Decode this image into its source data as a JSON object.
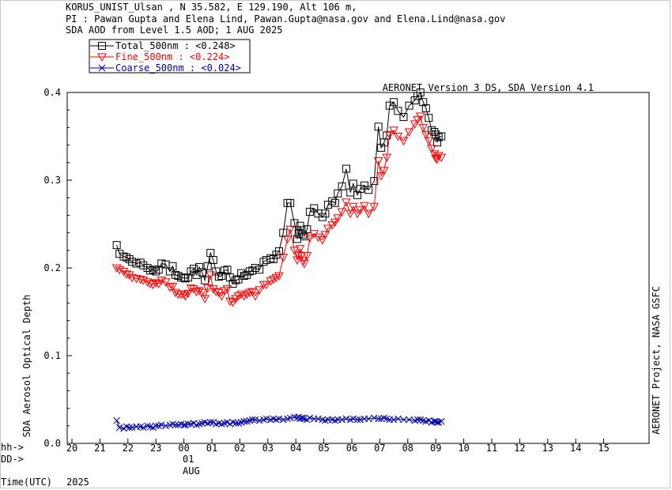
{
  "header": {
    "line1": "KORUS_UNIST_Ulsan , N 35.582, E 129.190, Alt 106 m,",
    "line2": "PI : Pawan Gupta and Elena Lind, Pawan.Gupta@nasa.gov and Elena.Lind@nasa.gov",
    "line3": "SDA AOD from Level 1.5 AOD; 1 AUG 2025"
  },
  "version_label": "AERONET Version 3 DS, SDA Version 4.1",
  "right_credit": "AERONET Project, NASA GSFC",
  "ylabel": "SDA Aerosol Optical Depth",
  "left_labels": {
    "hh": "hh->",
    "dd": "DD->",
    "time": "Time(UTC)",
    "year": "2025"
  },
  "day_label": "01",
  "month_label": "AUG",
  "legend": [
    {
      "name": "Total_500nm",
      "value": "  : <0.248>",
      "color": "#000000",
      "marker": "square"
    },
    {
      "name": "Fine_500nm",
      "value": "  : <0.224>",
      "color": "#ff0000",
      "marker": "triangle"
    },
    {
      "name": "Coarse_500nm",
      "value": "  : <0.024>",
      "color": "#0000aa",
      "marker": "cross"
    }
  ],
  "chart_data": {
    "type": "scatter",
    "title": "SDA AOD from Level 1.5 AOD; 1 AUG 2025",
    "ylabel": "SDA Aerosol Optical Depth",
    "xlabel": "Time(UTC)",
    "x_start_hour": 20,
    "x_end_hour": 15,
    "xlim_hours_since_day_start": [
      -4,
      15.8
    ],
    "x_ticks": [
      "20",
      "21",
      "22",
      "23",
      "00",
      "01",
      "02",
      "03",
      "04",
      "05",
      "06",
      "07",
      "08",
      "09",
      "10",
      "11",
      "12",
      "13",
      "14",
      "15"
    ],
    "ylim": [
      0.0,
      0.4
    ],
    "y_ticks": [
      "0.0",
      "0.1",
      "0.2",
      "0.3",
      "0.4"
    ],
    "grid": false,
    "series": [
      {
        "name": "Total_500nm",
        "color": "#000000",
        "marker": "square",
        "x": [
          21.6,
          21.7,
          21.85,
          21.95,
          22.05,
          22.15,
          22.3,
          22.45,
          22.55,
          22.7,
          22.8,
          22.9,
          23.0,
          23.1,
          23.2,
          23.35,
          23.5,
          23.6,
          23.7,
          23.8,
          23.9,
          24.0,
          24.05,
          24.15,
          24.25,
          24.35,
          24.45,
          24.55,
          24.65,
          24.75,
          24.85,
          24.95,
          25.05,
          25.15,
          25.25,
          25.35,
          25.45,
          25.55,
          25.65,
          25.75,
          25.85,
          25.95,
          26.05,
          26.15,
          26.25,
          26.35,
          26.45,
          26.55,
          26.7,
          26.85,
          26.95,
          27.1,
          27.2,
          27.3,
          27.4,
          27.55,
          27.7,
          27.8,
          27.95,
          28.05,
          28.1,
          28.15,
          28.2,
          28.25,
          28.3,
          28.4,
          28.5,
          28.65,
          28.8,
          28.95,
          29.05,
          29.15,
          29.3,
          29.4,
          29.5,
          29.65,
          29.8,
          29.95,
          30.05,
          30.2,
          30.3,
          30.45,
          30.6,
          30.8,
          30.95,
          31.05,
          31.15,
          31.25,
          31.35,
          31.5,
          31.65,
          31.85,
          32.05,
          32.25,
          32.35,
          32.45,
          32.55,
          32.65,
          32.75,
          32.85,
          32.95,
          33.0,
          33.05,
          33.1,
          33.2
        ],
        "y": [
          0.226,
          0.216,
          0.213,
          0.212,
          0.21,
          0.207,
          0.205,
          0.206,
          0.203,
          0.2,
          0.197,
          0.198,
          0.196,
          0.198,
          0.205,
          0.204,
          0.196,
          0.202,
          0.192,
          0.191,
          0.189,
          0.189,
          0.188,
          0.189,
          0.196,
          0.199,
          0.192,
          0.201,
          0.195,
          0.186,
          0.202,
          0.217,
          0.209,
          0.196,
          0.19,
          0.191,
          0.197,
          0.198,
          0.189,
          0.182,
          0.186,
          0.187,
          0.194,
          0.191,
          0.192,
          0.196,
          0.197,
          0.2,
          0.198,
          0.207,
          0.209,
          0.211,
          0.21,
          0.215,
          0.219,
          0.24,
          0.274,
          0.274,
          0.251,
          0.233,
          0.239,
          0.248,
          0.243,
          0.238,
          0.236,
          0.244,
          0.264,
          0.268,
          0.262,
          0.258,
          0.262,
          0.272,
          0.276,
          0.274,
          0.285,
          0.293,
          0.313,
          0.286,
          0.296,
          0.283,
          0.29,
          0.294,
          0.289,
          0.299,
          0.361,
          0.337,
          0.343,
          0.351,
          0.385,
          0.389,
          0.379,
          0.372,
          0.385,
          0.391,
          0.396,
          0.4,
          0.389,
          0.382,
          0.371,
          0.357,
          0.355,
          0.352,
          0.343,
          0.349,
          0.35
        ]
      },
      {
        "name": "Fine_500nm",
        "color": "#ff0000",
        "marker": "triangle",
        "x": [
          21.6,
          21.7,
          21.85,
          21.95,
          22.05,
          22.15,
          22.3,
          22.45,
          22.55,
          22.7,
          22.8,
          22.9,
          23.0,
          23.1,
          23.2,
          23.35,
          23.5,
          23.6,
          23.7,
          23.8,
          23.9,
          24.0,
          24.05,
          24.15,
          24.25,
          24.35,
          24.45,
          24.55,
          24.65,
          24.75,
          24.85,
          24.95,
          25.05,
          25.15,
          25.25,
          25.35,
          25.45,
          25.55,
          25.65,
          25.75,
          25.85,
          25.95,
          26.05,
          26.15,
          26.25,
          26.35,
          26.45,
          26.55,
          26.7,
          26.85,
          26.95,
          27.1,
          27.2,
          27.3,
          27.4,
          27.55,
          27.7,
          27.8,
          27.95,
          28.05,
          28.1,
          28.15,
          28.2,
          28.25,
          28.3,
          28.4,
          28.5,
          28.65,
          28.8,
          28.95,
          29.05,
          29.15,
          29.3,
          29.4,
          29.5,
          29.65,
          29.8,
          29.95,
          30.05,
          30.2,
          30.3,
          30.45,
          30.6,
          30.8,
          30.95,
          31.05,
          31.15,
          31.25,
          31.35,
          31.5,
          31.65,
          31.85,
          32.05,
          32.25,
          32.35,
          32.45,
          32.55,
          32.65,
          32.75,
          32.85,
          32.95,
          33.0,
          33.05,
          33.1,
          33.2
        ],
        "y": [
          0.2,
          0.198,
          0.196,
          0.193,
          0.192,
          0.189,
          0.188,
          0.187,
          0.186,
          0.184,
          0.182,
          0.181,
          0.183,
          0.182,
          0.186,
          0.184,
          0.178,
          0.179,
          0.172,
          0.17,
          0.17,
          0.17,
          0.168,
          0.171,
          0.177,
          0.176,
          0.173,
          0.174,
          0.172,
          0.165,
          0.177,
          0.192,
          0.176,
          0.173,
          0.172,
          0.168,
          0.174,
          0.176,
          0.162,
          0.161,
          0.165,
          0.168,
          0.17,
          0.168,
          0.17,
          0.172,
          0.173,
          0.168,
          0.175,
          0.181,
          0.181,
          0.185,
          0.187,
          0.189,
          0.191,
          0.212,
          0.233,
          0.244,
          0.22,
          0.209,
          0.215,
          0.222,
          0.214,
          0.208,
          0.205,
          0.214,
          0.234,
          0.239,
          0.235,
          0.232,
          0.238,
          0.245,
          0.249,
          0.252,
          0.257,
          0.264,
          0.275,
          0.262,
          0.27,
          0.262,
          0.266,
          0.271,
          0.262,
          0.27,
          0.322,
          0.305,
          0.311,
          0.326,
          0.352,
          0.357,
          0.35,
          0.345,
          0.355,
          0.364,
          0.369,
          0.373,
          0.36,
          0.352,
          0.345,
          0.336,
          0.33,
          0.325,
          0.324,
          0.328,
          0.326
        ]
      },
      {
        "name": "Coarse_500nm",
        "color": "#0000aa",
        "marker": "cross",
        "x": [
          21.6,
          21.7,
          21.85,
          21.95,
          22.05,
          22.15,
          22.3,
          22.45,
          22.55,
          22.7,
          22.8,
          22.9,
          23.0,
          23.1,
          23.2,
          23.35,
          23.5,
          23.6,
          23.7,
          23.8,
          23.9,
          24.0,
          24.05,
          24.15,
          24.25,
          24.35,
          24.45,
          24.55,
          24.65,
          24.75,
          24.85,
          24.95,
          25.05,
          25.15,
          25.25,
          25.35,
          25.45,
          25.55,
          25.65,
          25.75,
          25.85,
          25.95,
          26.05,
          26.15,
          26.25,
          26.35,
          26.45,
          26.55,
          26.7,
          26.85,
          26.95,
          27.1,
          27.2,
          27.3,
          27.4,
          27.55,
          27.7,
          27.8,
          27.95,
          28.05,
          28.1,
          28.15,
          28.2,
          28.25,
          28.3,
          28.4,
          28.5,
          28.65,
          28.8,
          28.95,
          29.05,
          29.15,
          29.3,
          29.4,
          29.5,
          29.65,
          29.8,
          29.95,
          30.05,
          30.2,
          30.3,
          30.45,
          30.6,
          30.8,
          30.95,
          31.05,
          31.15,
          31.25,
          31.35,
          31.5,
          31.65,
          31.85,
          32.05,
          32.25,
          32.35,
          32.45,
          32.55,
          32.65,
          32.75,
          32.85,
          32.95,
          33.0,
          33.05,
          33.1,
          33.2
        ],
        "y": [
          0.026,
          0.018,
          0.017,
          0.019,
          0.018,
          0.018,
          0.019,
          0.019,
          0.018,
          0.02,
          0.019,
          0.018,
          0.02,
          0.02,
          0.021,
          0.02,
          0.021,
          0.022,
          0.021,
          0.021,
          0.022,
          0.021,
          0.021,
          0.022,
          0.022,
          0.023,
          0.021,
          0.022,
          0.023,
          0.024,
          0.023,
          0.024,
          0.024,
          0.022,
          0.023,
          0.022,
          0.023,
          0.024,
          0.022,
          0.024,
          0.023,
          0.023,
          0.024,
          0.025,
          0.025,
          0.026,
          0.027,
          0.027,
          0.026,
          0.027,
          0.028,
          0.027,
          0.028,
          0.027,
          0.028,
          0.027,
          0.028,
          0.029,
          0.03,
          0.029,
          0.03,
          0.028,
          0.029,
          0.029,
          0.028,
          0.027,
          0.029,
          0.028,
          0.028,
          0.027,
          0.026,
          0.027,
          0.027,
          0.026,
          0.027,
          0.027,
          0.028,
          0.027,
          0.028,
          0.027,
          0.027,
          0.028,
          0.028,
          0.029,
          0.028,
          0.028,
          0.029,
          0.028,
          0.027,
          0.027,
          0.028,
          0.027,
          0.027,
          0.026,
          0.027,
          0.027,
          0.026,
          0.025,
          0.026,
          0.024,
          0.025,
          0.025,
          0.024,
          0.024,
          0.025
        ]
      }
    ]
  }
}
